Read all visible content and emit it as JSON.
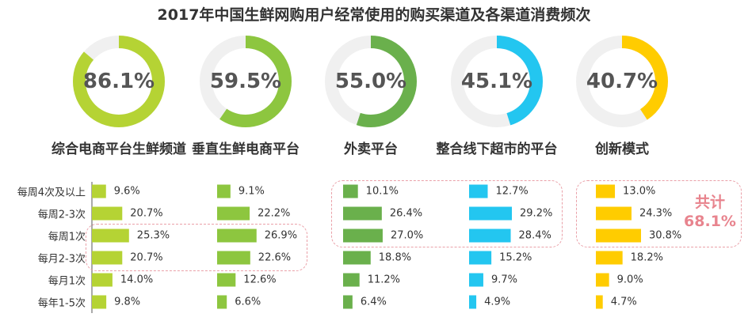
{
  "chart_data": {
    "type": "donut+bar",
    "title": "2017年中国生鲜网购用户经常使用的购买渠道及各渠道消费频次",
    "channels": [
      {
        "name": "综合电商平台生鲜频道",
        "share": 86.1,
        "share_label": "86.1%",
        "color": "#b5d334",
        "freq": [
          9.6,
          20.7,
          25.3,
          20.7,
          14.0,
          9.8
        ]
      },
      {
        "name": "垂直生鲜电商平台",
        "share": 59.5,
        "share_label": "59.5%",
        "color": "#8dc63f",
        "freq": [
          9.1,
          22.2,
          26.9,
          22.6,
          12.6,
          6.6
        ]
      },
      {
        "name": "外卖平台",
        "share": 55.0,
        "share_label": "55.0%",
        "color": "#6ab04c",
        "freq": [
          10.1,
          26.4,
          27.0,
          18.8,
          11.2,
          6.4
        ]
      },
      {
        "name": "整合线下超市的平台",
        "share": 45.1,
        "share_label": "45.1%",
        "color": "#23c6f0",
        "freq": [
          12.7,
          29.2,
          28.4,
          15.2,
          9.7,
          4.9
        ]
      },
      {
        "name": "创新模式",
        "share": 40.7,
        "share_label": "40.7%",
        "color": "#ffcc00",
        "freq": [
          13.0,
          24.3,
          30.8,
          18.2,
          9.0,
          4.7
        ]
      }
    ],
    "categories": [
      "每周4次及以上",
      "每周2-3次",
      "每周1次",
      "每月2-3次",
      "每月1次",
      "每年1-5次"
    ],
    "annotation": {
      "line1": "共计",
      "line2": "68.1%",
      "color": "#e8848e"
    },
    "ring_track_color": "#f0f0f0"
  }
}
